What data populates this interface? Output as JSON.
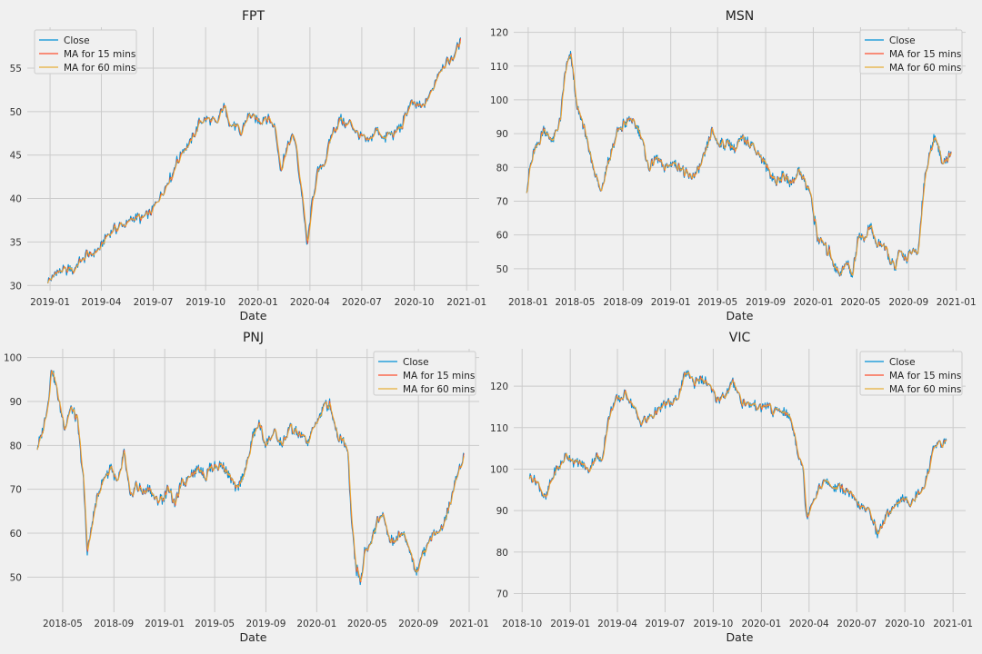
{
  "chart_data": [
    {
      "type": "line",
      "title": "FPT",
      "xlabel": "Date",
      "ylabel": "",
      "grid": true,
      "legend_position": "top-left",
      "xlim": [
        "2018-11-22",
        "2021-01-23"
      ],
      "ylim": [
        29.4,
        59.7
      ],
      "xticks": [
        "2019-01-01",
        "2019-04-01",
        "2019-07-01",
        "2019-10-01",
        "2020-01-01",
        "2020-04-01",
        "2020-07-01",
        "2020-10-01",
        "2021-01-01"
      ],
      "xtick_labels": [
        "2019-01",
        "2019-04",
        "2019-07",
        "2019-10",
        "2020-01",
        "2020-04",
        "2020-07",
        "2020-10",
        "2021-01"
      ],
      "yticks": [
        30,
        35,
        40,
        45,
        50,
        55
      ],
      "ytick_labels": [
        "30",
        "35",
        "40",
        "45",
        "50",
        "55"
      ],
      "series": [
        {
          "name": "Close",
          "color": "#008fd5"
        },
        {
          "name": "MA for 15 mins",
          "color": "#fc4f30"
        },
        {
          "name": "MA for 60 mins",
          "color": "#e5ae38"
        }
      ],
      "x": [
        "2018-12-28",
        "2019-01-15",
        "2019-02-15",
        "2019-03-05",
        "2019-03-25",
        "2019-04-10",
        "2019-05-01",
        "2019-05-20",
        "2019-06-10",
        "2019-06-25",
        "2019-07-15",
        "2019-08-01",
        "2019-08-20",
        "2019-09-05",
        "2019-09-20",
        "2019-10-05",
        "2019-10-20",
        "2019-11-01",
        "2019-11-15",
        "2019-12-01",
        "2019-12-15",
        "2020-01-05",
        "2020-01-20",
        "2020-01-30",
        "2020-02-10",
        "2020-02-25",
        "2020-03-05",
        "2020-03-12",
        "2020-03-20",
        "2020-03-27",
        "2020-04-05",
        "2020-04-15",
        "2020-04-25",
        "2020-05-10",
        "2020-05-25",
        "2020-06-10",
        "2020-06-25",
        "2020-07-10",
        "2020-07-25",
        "2020-08-10",
        "2020-08-25",
        "2020-09-10",
        "2020-09-25",
        "2020-10-10",
        "2020-10-25",
        "2020-11-10",
        "2020-11-25",
        "2020-12-10",
        "2020-12-22"
      ],
      "y": [
        30.8,
        31.5,
        32.0,
        33.5,
        33.8,
        35.5,
        36.8,
        37.5,
        37.8,
        38.5,
        40.5,
        42.5,
        45.5,
        46.5,
        49.0,
        49.5,
        48.5,
        50.5,
        48.5,
        47.5,
        49.5,
        49.0,
        49.5,
        48.0,
        43.5,
        46.5,
        47.0,
        43.5,
        39.0,
        34.5,
        40.0,
        43.5,
        44.0,
        47.5,
        49.0,
        48.5,
        47.0,
        46.5,
        48.0,
        47.0,
        47.5,
        48.5,
        51.0,
        50.5,
        51.5,
        54.0,
        55.5,
        56.5,
        58.0
      ]
    },
    {
      "type": "line",
      "title": "MSN",
      "xlabel": "Date",
      "ylabel": "",
      "grid": true,
      "legend_position": "top-right",
      "xlim": [
        "2017-11-25",
        "2021-01-25"
      ],
      "ylim": [
        43.5,
        121.5
      ],
      "xticks": [
        "2018-01-01",
        "2018-05-01",
        "2018-09-01",
        "2019-01-01",
        "2019-05-01",
        "2019-09-01",
        "2020-01-01",
        "2020-05-01",
        "2020-09-01",
        "2021-01-01"
      ],
      "xtick_labels": [
        "2018-01",
        "2018-05",
        "2018-09",
        "2019-01",
        "2019-05",
        "2019-09",
        "2020-01",
        "2020-05",
        "2020-09",
        "2021-01"
      ],
      "yticks": [
        50,
        60,
        70,
        80,
        90,
        100,
        110,
        120
      ],
      "ytick_labels": [
        "50",
        "60",
        "70",
        "80",
        "90",
        "100",
        "110",
        "120"
      ],
      "series": [
        {
          "name": "Close",
          "color": "#008fd5"
        },
        {
          "name": "MA for 15 mins",
          "color": "#fc4f30"
        },
        {
          "name": "MA for 60 mins",
          "color": "#e5ae38"
        }
      ],
      "x": [
        "2017-12-28",
        "2018-01-15",
        "2018-02-10",
        "2018-03-05",
        "2018-03-25",
        "2018-04-05",
        "2018-04-20",
        "2018-05-05",
        "2018-05-25",
        "2018-06-15",
        "2018-07-05",
        "2018-07-25",
        "2018-08-15",
        "2018-09-05",
        "2018-09-25",
        "2018-10-15",
        "2018-11-05",
        "2018-11-25",
        "2018-12-15",
        "2019-01-05",
        "2019-01-25",
        "2019-02-15",
        "2019-03-05",
        "2019-03-25",
        "2019-04-15",
        "2019-05-05",
        "2019-05-25",
        "2019-06-15",
        "2019-07-05",
        "2019-07-25",
        "2019-08-15",
        "2019-09-05",
        "2019-09-25",
        "2019-10-15",
        "2019-11-05",
        "2019-11-25",
        "2019-12-10",
        "2019-12-25",
        "2020-01-10",
        "2020-01-25",
        "2020-02-10",
        "2020-02-25",
        "2020-03-10",
        "2020-03-25",
        "2020-04-10",
        "2020-04-25",
        "2020-05-10",
        "2020-05-25",
        "2020-06-10",
        "2020-06-25",
        "2020-07-10",
        "2020-07-25",
        "2020-08-10",
        "2020-08-25",
        "2020-09-10",
        "2020-09-25",
        "2020-10-10",
        "2020-10-25",
        "2020-11-10",
        "2020-11-25",
        "2020-12-10",
        "2020-12-20"
      ],
      "y": [
        74,
        85,
        91,
        88,
        95,
        108,
        113,
        98,
        91,
        80,
        73,
        82,
        90,
        93,
        94,
        90,
        79,
        83,
        80,
        81,
        80,
        77,
        78,
        83,
        91,
        87,
        87,
        86,
        88,
        87,
        84,
        80,
        76,
        77,
        75,
        79,
        76,
        72,
        60,
        57,
        55,
        50,
        49,
        52,
        48,
        60,
        59,
        63,
        57,
        57,
        55,
        50,
        55,
        53,
        55,
        54,
        75,
        84,
        90,
        81,
        83,
        84
      ]
    },
    {
      "type": "line",
      "title": "PNJ",
      "xlabel": "Date",
      "ylabel": "",
      "grid": true,
      "legend_position": "top-right",
      "xlim": [
        "2018-02-05",
        "2021-01-25"
      ],
      "ylim": [
        42,
        102
      ],
      "xticks": [
        "2018-05-01",
        "2018-09-01",
        "2019-01-01",
        "2019-05-01",
        "2019-09-01",
        "2020-01-01",
        "2020-05-01",
        "2020-09-01",
        "2021-01-01"
      ],
      "xtick_labels": [
        "2018-05",
        "2018-09",
        "2019-01",
        "2019-05",
        "2019-09",
        "2020-01",
        "2020-05",
        "2020-09",
        "2021-01"
      ],
      "yticks": [
        50,
        60,
        70,
        80,
        90,
        100
      ],
      "ytick_labels": [
        "50",
        "60",
        "70",
        "80",
        "90",
        "100"
      ],
      "series": [
        {
          "name": "Close",
          "color": "#008fd5"
        },
        {
          "name": "MA for 15 mins",
          "color": "#fc4f30"
        },
        {
          "name": "MA for 60 mins",
          "color": "#e5ae38"
        }
      ],
      "x": [
        "2018-03-01",
        "2018-03-15",
        "2018-03-25",
        "2018-04-05",
        "2018-04-20",
        "2018-05-05",
        "2018-05-20",
        "2018-06-05",
        "2018-06-20",
        "2018-06-28",
        "2018-07-10",
        "2018-07-25",
        "2018-08-10",
        "2018-08-25",
        "2018-09-10",
        "2018-09-25",
        "2018-10-10",
        "2018-10-25",
        "2018-11-10",
        "2018-11-25",
        "2018-12-10",
        "2018-12-25",
        "2019-01-10",
        "2019-01-25",
        "2019-02-10",
        "2019-03-01",
        "2019-03-20",
        "2019-04-10",
        "2019-05-01",
        "2019-05-20",
        "2019-06-05",
        "2019-06-25",
        "2019-07-15",
        "2019-08-01",
        "2019-08-15",
        "2019-09-01",
        "2019-09-20",
        "2019-10-10",
        "2019-10-30",
        "2019-11-20",
        "2019-12-10",
        "2019-12-30",
        "2020-01-15",
        "2020-02-01",
        "2020-02-20",
        "2020-03-05",
        "2020-03-15",
        "2020-03-25",
        "2020-04-05",
        "2020-04-15",
        "2020-04-25",
        "2020-05-10",
        "2020-05-25",
        "2020-06-10",
        "2020-06-25",
        "2020-07-10",
        "2020-07-25",
        "2020-08-10",
        "2020-08-25",
        "2020-09-10",
        "2020-09-25",
        "2020-10-10",
        "2020-10-25",
        "2020-11-10",
        "2020-11-25",
        "2020-12-10",
        "2020-12-20"
      ],
      "y": [
        79,
        84,
        89,
        98,
        91,
        84,
        88,
        86,
        72,
        56,
        62,
        69,
        73,
        75,
        71,
        78,
        68,
        71,
        69,
        70,
        67,
        68,
        70,
        67,
        71,
        73,
        75,
        73,
        76,
        75,
        73,
        70,
        75,
        82,
        85,
        80,
        83,
        80,
        84,
        82,
        81,
        85,
        88,
        90,
        82,
        81,
        79,
        62,
        52,
        48,
        56,
        58,
        63,
        64,
        58,
        59,
        60,
        57,
        51,
        55,
        58,
        60,
        61,
        65,
        70,
        75,
        78
      ]
    },
    {
      "type": "line",
      "title": "VIC",
      "xlabel": "Date",
      "ylabel": "",
      "grid": true,
      "legend_position": "top-right",
      "xlim": [
        "2018-09-15",
        "2021-01-25"
      ],
      "ylim": [
        65.5,
        129
      ],
      "xticks": [
        "2018-10-01",
        "2019-01-01",
        "2019-04-01",
        "2019-07-01",
        "2019-10-01",
        "2020-01-01",
        "2020-04-01",
        "2020-07-01",
        "2020-10-01",
        "2021-01-01"
      ],
      "xtick_labels": [
        "2018-10",
        "2019-01",
        "2019-04",
        "2019-07",
        "2019-10",
        "2020-01",
        "2020-04",
        "2020-07",
        "2020-10",
        "2021-01"
      ],
      "yticks": [
        70,
        80,
        90,
        100,
        110,
        120
      ],
      "ytick_labels": [
        "70",
        "80",
        "90",
        "100",
        "110",
        "120"
      ],
      "series": [
        {
          "name": "Close",
          "color": "#008fd5"
        },
        {
          "name": "MA for 15 mins",
          "color": "#fc4f30"
        },
        {
          "name": "MA for 60 mins",
          "color": "#e5ae38"
        }
      ],
      "x": [
        "2018-10-15",
        "2018-10-25",
        "2018-11-05",
        "2018-11-15",
        "2018-11-28",
        "2018-12-10",
        "2018-12-25",
        "2019-01-05",
        "2019-01-20",
        "2019-02-05",
        "2019-02-20",
        "2019-03-01",
        "2019-03-15",
        "2019-03-30",
        "2019-04-15",
        "2019-05-01",
        "2019-05-15",
        "2019-06-01",
        "2019-06-15",
        "2019-07-01",
        "2019-07-15",
        "2019-07-25",
        "2019-08-10",
        "2019-08-25",
        "2019-09-10",
        "2019-09-25",
        "2019-10-10",
        "2019-10-25",
        "2019-11-10",
        "2019-11-25",
        "2019-12-10",
        "2019-12-25",
        "2020-01-10",
        "2020-01-25",
        "2020-02-10",
        "2020-02-25",
        "2020-03-10",
        "2020-03-20",
        "2020-03-27",
        "2020-04-05",
        "2020-04-15",
        "2020-05-01",
        "2020-05-15",
        "2020-06-01",
        "2020-06-15",
        "2020-07-01",
        "2020-07-15",
        "2020-07-25",
        "2020-08-10",
        "2020-08-25",
        "2020-09-10",
        "2020-09-25",
        "2020-10-10",
        "2020-10-25",
        "2020-11-10",
        "2020-11-25",
        "2020-12-10",
        "2020-12-20"
      ],
      "y": [
        98,
        97,
        95,
        93,
        98,
        101,
        103,
        102,
        101,
        100,
        103,
        102,
        112,
        117,
        118,
        115,
        111,
        112,
        114,
        116,
        115,
        118,
        123,
        121,
        122,
        119,
        117,
        118,
        121,
        116,
        115,
        115,
        115,
        114,
        114,
        113,
        104,
        100,
        88,
        92,
        94,
        97,
        96,
        96,
        95,
        92,
        90,
        90,
        84,
        88,
        91,
        93,
        92,
        94,
        97,
        106,
        106,
        107
      ]
    }
  ]
}
